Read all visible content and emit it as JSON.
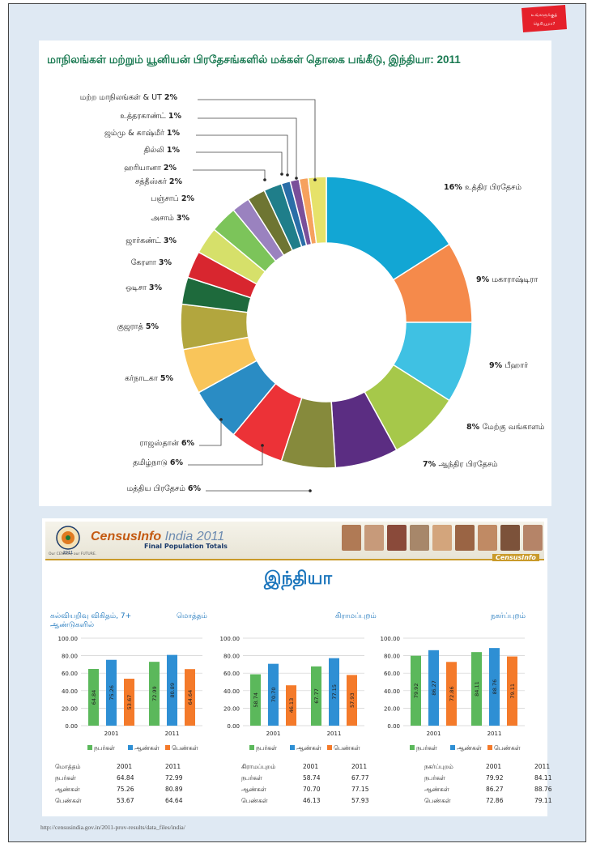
{
  "badge": {
    "line1": "உங்களுக்குத்",
    "line2": "தெரியுமா?"
  },
  "pie": {
    "title": "மாநிலங்கள் மற்றும் யூனியன் பிரதேசங்களில் மக்கள் தொகை பங்கீடு, இந்தியா: 2011"
  },
  "chart_data": [
    {
      "type": "pie",
      "title": "மாநிலங்கள் மற்றும் யூனியன் பிரதேசங்களில் மக்கள் தொகை பங்கீடு, இந்தியா: 2011",
      "slices": [
        {
          "name": "உத்திர பிரதேசம்",
          "pct": 16,
          "label": "16%",
          "color": "#12a6d4"
        },
        {
          "name": "மகாராஷ்டிரா",
          "pct": 9,
          "label": "9%",
          "color": "#f58a4b"
        },
        {
          "name": "பீஹார்",
          "pct": 9,
          "label": "9%",
          "color": "#3fc1e3"
        },
        {
          "name": "மேற்கு வங்காளம்",
          "pct": 8,
          "label": "8%",
          "color": "#a6c84a"
        },
        {
          "name": "ஆந்திர பிரதேசம்",
          "pct": 7,
          "label": "7%",
          "color": "#5b2d82"
        },
        {
          "name": "மத்திய பிரதேசம்",
          "pct": 6,
          "label": "6%",
          "color": "#868a3c"
        },
        {
          "name": "தமிழ்நாடு",
          "pct": 6,
          "label": "6%",
          "color": "#ec3237"
        },
        {
          "name": "ராஜஸ்தான்",
          "pct": 6,
          "label": "6%",
          "color": "#2a8cc4"
        },
        {
          "name": "கர்நாடகா",
          "pct": 5,
          "label": "5%",
          "color": "#f9c55a"
        },
        {
          "name": "குஜராத்",
          "pct": 5,
          "label": "5%",
          "color": "#b2a63e"
        },
        {
          "name": "ஒடிசா",
          "pct": 3,
          "label": "3%",
          "color": "#1e6a3c"
        },
        {
          "name": "கேரளா",
          "pct": 3,
          "label": "3%",
          "color": "#d8262f"
        },
        {
          "name": "ஜார்கண்ட்",
          "pct": 3,
          "label": "3%",
          "color": "#d6e06a"
        },
        {
          "name": "அசாம்",
          "pct": 3,
          "label": "3%",
          "color": "#7cc45a"
        },
        {
          "name": "பஞ்சாப்",
          "pct": 2,
          "label": "2%",
          "color": "#9a82bf"
        },
        {
          "name": "சத்தீஸ்கர்",
          "pct": 2,
          "label": "2%",
          "color": "#6e7532"
        },
        {
          "name": "ஹரியானா",
          "pct": 2,
          "label": "2%",
          "color": "#1f7e8a"
        },
        {
          "name": "தில்லி",
          "pct": 1,
          "label": "1%",
          "color": "#2a6ea8"
        },
        {
          "name": "ஜம்மு & காஷ்மீர்",
          "pct": 1,
          "label": "1%",
          "color": "#7a4f9a"
        },
        {
          "name": "உத்தரகாண்ட்",
          "pct": 1,
          "label": "1%",
          "color": "#f6a15e"
        },
        {
          "name": "மற்ற மாநிலங்கள் & UT",
          "pct": 2,
          "label": "2%",
          "color": "#e6e26a"
        }
      ]
    },
    {
      "type": "bar",
      "title": "மொத்தம்",
      "ylabel": "கல்வியறிவு விகிதம், 7+ ஆண்டுகளில்",
      "categories": [
        "2001",
        "2011"
      ],
      "ylim": [
        0,
        100
      ],
      "yticks": [
        "0.00",
        "20.00",
        "40.00",
        "60.00",
        "80.00",
        "100.00"
      ],
      "series": [
        {
          "name": "நபர்கள்",
          "color": "#5bb85b",
          "values": [
            64.84,
            72.99
          ],
          "labels": [
            "64.84",
            "72.99"
          ]
        },
        {
          "name": "ஆண்கள்",
          "color": "#2e8fd4",
          "values": [
            75.26,
            80.89
          ],
          "labels": [
            "75.26",
            "80.89"
          ]
        },
        {
          "name": "பெண்கள்",
          "color": "#f47a2a",
          "values": [
            53.67,
            64.64
          ],
          "labels": [
            "53.67",
            "64.64"
          ]
        }
      ]
    },
    {
      "type": "bar",
      "title": "கிராமப்புறம்",
      "categories": [
        "2001",
        "2011"
      ],
      "ylim": [
        0,
        100
      ],
      "yticks": [
        "0.00",
        "20.00",
        "40.00",
        "60.00",
        "80.00",
        "100.00"
      ],
      "series": [
        {
          "name": "நபர்கள்",
          "color": "#5bb85b",
          "values": [
            58.74,
            67.77
          ],
          "labels": [
            "58.74",
            "67.77"
          ]
        },
        {
          "name": "ஆண்கள்",
          "color": "#2e8fd4",
          "values": [
            70.7,
            77.15
          ],
          "labels": [
            "70.70",
            "77.15"
          ]
        },
        {
          "name": "பெண்கள்",
          "color": "#f47a2a",
          "values": [
            46.13,
            57.93
          ],
          "labels": [
            "46.13",
            "57.93"
          ]
        }
      ]
    },
    {
      "type": "bar",
      "title": "நகர்ப்புறம்",
      "categories": [
        "2001",
        "2011"
      ],
      "ylim": [
        0,
        100
      ],
      "yticks": [
        "0.00",
        "20.00",
        "40.00",
        "60.00",
        "80.00",
        "100.00"
      ],
      "series": [
        {
          "name": "நபர்கள்",
          "color": "#5bb85b",
          "values": [
            79.92,
            84.11
          ],
          "labels": [
            "79.92",
            "84.11"
          ]
        },
        {
          "name": "ஆண்கள்",
          "color": "#2e8fd4",
          "values": [
            86.27,
            88.76
          ],
          "labels": [
            "86.27",
            "88.76"
          ]
        },
        {
          "name": "பெண்கள்",
          "color": "#f47a2a",
          "values": [
            72.86,
            79.11
          ],
          "labels": [
            "72.86",
            "79.11"
          ]
        }
      ]
    }
  ],
  "census": {
    "brand": "CensusInfo",
    "brand_year": " India 2011",
    "subtitle": "Final Population Totals",
    "tagline": "Our CENSUS, our FUTURE.",
    "logo_year": "2011",
    "brand_right": "CensusInfo",
    "country": "இந்தியா"
  },
  "tables": [
    {
      "head": [
        "மொத்தம்",
        "2001",
        "2011"
      ],
      "rows": [
        [
          "நபர்கள்",
          "64.84",
          "72.99"
        ],
        [
          "ஆண்கள்",
          "75.26",
          "80.89"
        ],
        [
          "பெண்கள்",
          "53.67",
          "64.64"
        ]
      ]
    },
    {
      "head": [
        "கிராமப்புறம்",
        "2001",
        "2011"
      ],
      "rows": [
        [
          "நபர்கள்",
          "58.74",
          "67.77"
        ],
        [
          "ஆண்கள்",
          "70.70",
          "77.15"
        ],
        [
          "பெண்கள்",
          "46.13",
          "57.93"
        ]
      ]
    },
    {
      "head": [
        "நகர்ப்புறம்",
        "2001",
        "2011"
      ],
      "rows": [
        [
          "நபர்கள்",
          "79.92",
          "84.11"
        ],
        [
          "ஆண்கள்",
          "86.27",
          "88.76"
        ],
        [
          "பெண்கள்",
          "72.86",
          "79.11"
        ]
      ]
    }
  ],
  "footer": {
    "url": "http://censusindia.gov.in/2011-prov-results/data_files/india/"
  }
}
